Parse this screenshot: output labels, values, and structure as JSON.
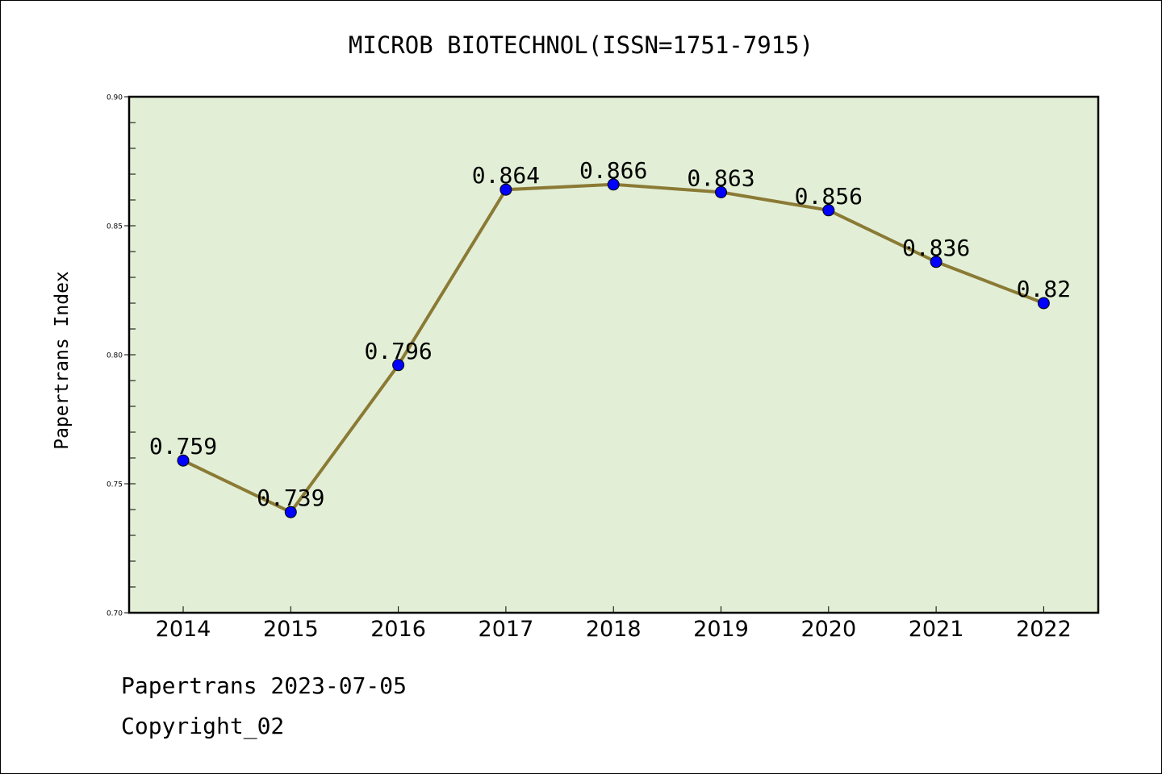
{
  "chart_data": {
    "type": "line",
    "title": "MICROB BIOTECHNOL(ISSN=1751-7915)",
    "xlabel": "",
    "ylabel": "Papertrans Index",
    "categories": [
      "2014",
      "2015",
      "2016",
      "2017",
      "2018",
      "2019",
      "2020",
      "2021",
      "2022"
    ],
    "values": [
      0.759,
      0.739,
      0.796,
      0.864,
      0.866,
      0.863,
      0.856,
      0.836,
      0.82
    ],
    "data_labels": [
      "0.759",
      "0.739",
      "0.796",
      "0.864",
      "0.866",
      "0.863",
      "0.856",
      "0.836",
      "0.82"
    ],
    "ylim": [
      0.7,
      0.9
    ],
    "yticks": [
      "0.70",
      "0.75",
      "0.80",
      "0.85",
      "0.90"
    ],
    "grid": false,
    "legend": "none",
    "colors": {
      "plot_background": "#e2efd6",
      "line": "#8b7a35",
      "marker": "#0000ff",
      "axis": "#000000"
    }
  },
  "footer": {
    "line1": "Papertrans 2023-07-05",
    "line2": "Copyright_02"
  }
}
